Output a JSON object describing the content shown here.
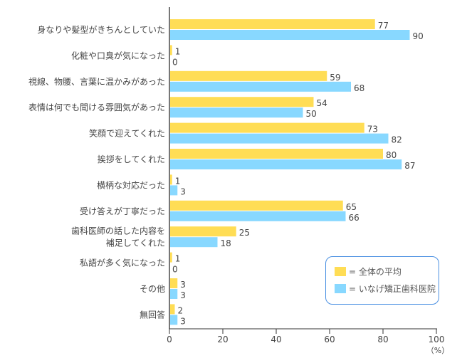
{
  "chart_data": {
    "type": "bar",
    "orientation": "horizontal",
    "categories": [
      "身なりや髪型がきちんとしていた",
      "化粧や口臭が気になった",
      "視線、物腰、言葉に温かみがあった",
      "表情は何でも聞ける雰囲気があった",
      "笑顔で迎えてくれた",
      "挨拶をしてくれた",
      "横柄な対応だった",
      "受け答えが丁寧だった",
      "歯科医師の話した内容を\n補足してくれた",
      "私語が多く気になった",
      "その他",
      "無回答"
    ],
    "series": [
      {
        "name": "= 全体の平均",
        "color": "#FFDD55",
        "values": [
          77,
          1,
          59,
          54,
          73,
          80,
          1,
          65,
          25,
          1,
          3,
          2
        ]
      },
      {
        "name": "= いなげ矯正歯科医院",
        "color": "#88D8FF",
        "values": [
          90,
          0,
          68,
          50,
          82,
          87,
          3,
          66,
          18,
          0,
          3,
          3
        ]
      }
    ],
    "xlim": [
      0,
      100
    ],
    "xticks": [
      0,
      20,
      40,
      60,
      80,
      100
    ],
    "xunit": "（%）",
    "legend_placement": "bottom-right",
    "grid": false
  }
}
